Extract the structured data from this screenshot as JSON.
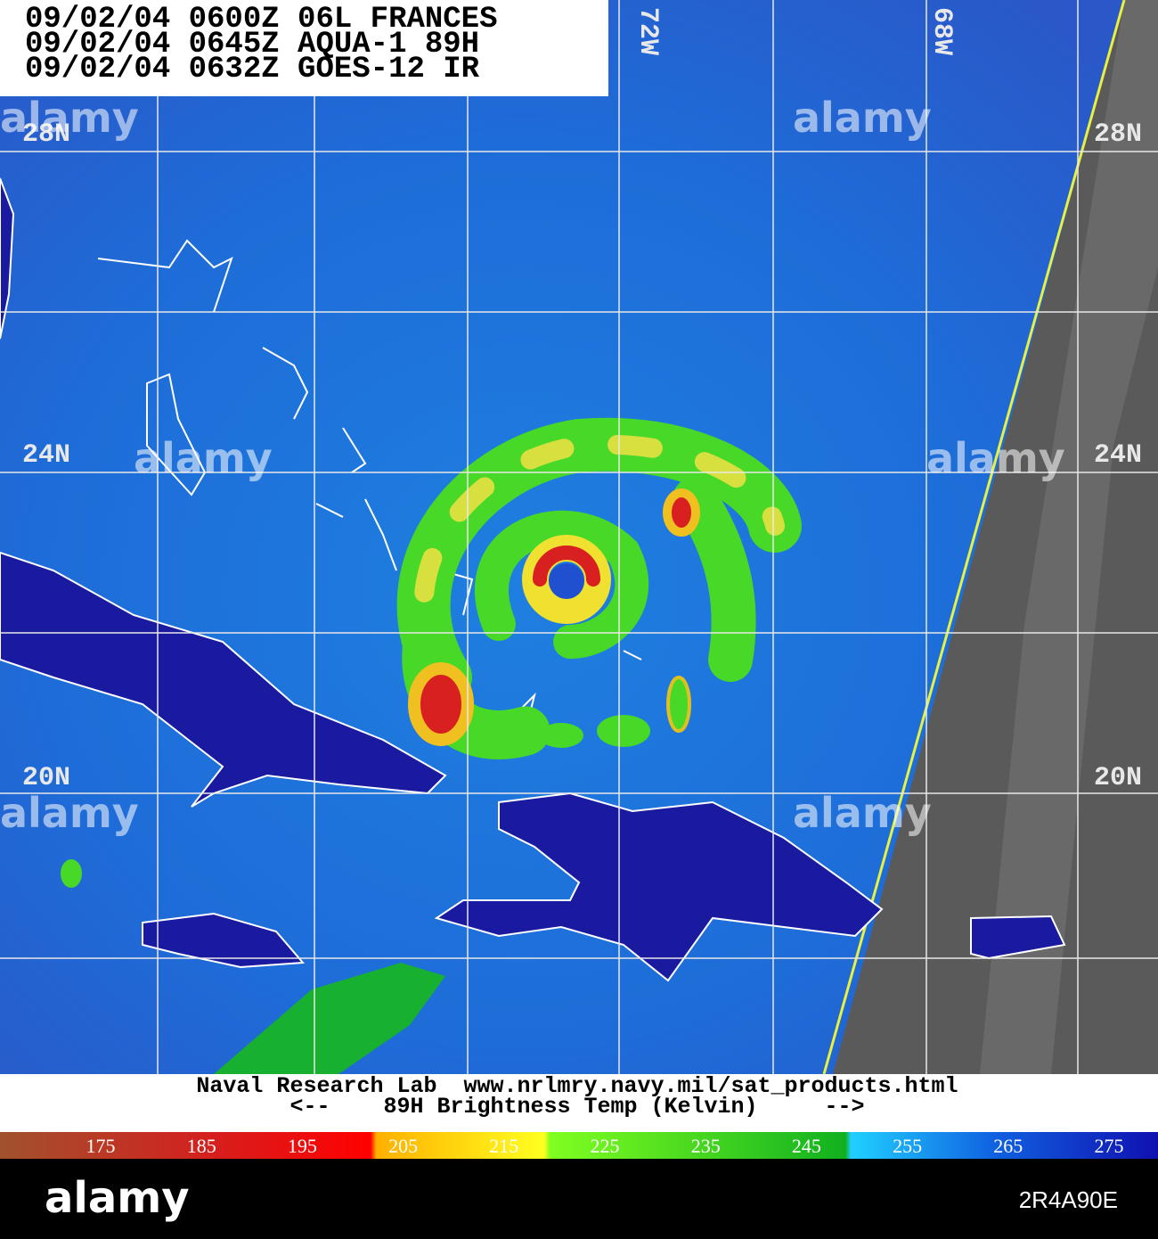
{
  "header": {
    "lines": [
      "09/02/04 0600Z 06L FRANCES",
      "09/02/04 0645Z AQUA-1 89H",
      "09/02/04 0632Z GOES-12 IR"
    ]
  },
  "map": {
    "lat_labels": [
      "28N",
      "24N",
      "20N"
    ],
    "lon_labels": [
      "72W",
      "68W"
    ]
  },
  "footer": {
    "credit": "Naval Research Lab  www.nrlmry.navy.mil/sat_products.html",
    "scale_title": "<--    89H Brightness Temp (Kelvin)     -->"
  },
  "colorbar": {
    "ticks": [
      175,
      185,
      195,
      205,
      215,
      225,
      235,
      245,
      255,
      265,
      275
    ]
  },
  "watermark": {
    "text": "alamy",
    "image_id": "2R4A90E"
  }
}
